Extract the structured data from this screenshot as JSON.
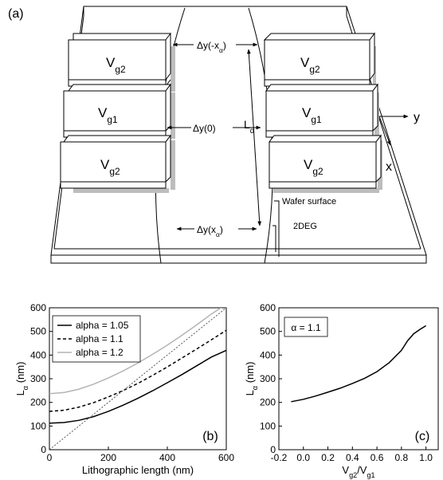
{
  "panel_a": {
    "label": "(a)",
    "gates": {
      "left": [
        "V_g2",
        "V_g1",
        "V_g2"
      ],
      "right": [
        "V_g2",
        "V_g1",
        "V_g2"
      ]
    },
    "annotations": {
      "dy_neg": "Δy(-x_α)",
      "dy_zero": "Δy(0)",
      "dy_pos": "Δy(x_α)",
      "l_alpha": "L_α",
      "wafer": "Wafer surface",
      "twodeg": "2DEG"
    },
    "axes": {
      "y": "y",
      "x": "x"
    }
  },
  "chart_data": [
    {
      "panel_label": "(b)",
      "type": "line",
      "xlabel": "Lithographic length (nm)",
      "ylabel": "L_α (nm)",
      "xlim": [
        0,
        600
      ],
      "ylim": [
        0,
        600
      ],
      "xticks": [
        0,
        200,
        400,
        600
      ],
      "yticks": [
        0,
        100,
        200,
        300,
        400,
        500,
        600
      ],
      "grid": false,
      "legend": "top-left",
      "series": [
        {
          "name": "alpha = 1.05",
          "color": "#000000",
          "dash": "solid",
          "x": [
            0,
            50,
            100,
            150,
            200,
            250,
            300,
            350,
            400,
            450,
            500,
            550,
            600
          ],
          "y": [
            112,
            115,
            124,
            140,
            162,
            188,
            217,
            249,
            283,
            318,
            355,
            392,
            420
          ]
        },
        {
          "name": "alpha = 1.1",
          "color": "#000000",
          "dash": "dashed",
          "x": [
            0,
            50,
            100,
            150,
            200,
            250,
            300,
            350,
            400,
            450,
            500,
            550,
            600
          ],
          "y": [
            162,
            167,
            180,
            199,
            223,
            250,
            280,
            314,
            350,
            388,
            426,
            465,
            505
          ]
        },
        {
          "name": "alpha = 1.2",
          "color": "#b4b4b4",
          "dash": "solid",
          "x": [
            0,
            50,
            100,
            150,
            200,
            250,
            300,
            350,
            400,
            450,
            500,
            550,
            600
          ],
          "y": [
            237,
            242,
            256,
            277,
            303,
            333,
            366,
            403,
            442,
            484,
            528,
            574,
            615
          ]
        },
        {
          "name": "",
          "color": "#555555",
          "dash": "dotted",
          "x": [
            0,
            600
          ],
          "y": [
            0,
            600
          ]
        }
      ]
    },
    {
      "panel_label": "(c)",
      "type": "line",
      "xlabel": "V_g2/V_g1",
      "ylabel": "L_α (nm)",
      "xlim": [
        -0.2,
        1.1
      ],
      "ylim": [
        0,
        600
      ],
      "xticks": [
        -0.2,
        0.0,
        0.2,
        0.4,
        0.6,
        0.8,
        1.0
      ],
      "yticks": [
        0,
        100,
        200,
        300,
        400,
        500,
        600
      ],
      "grid": false,
      "annotation": "α = 1.1",
      "series": [
        {
          "name": "",
          "color": "#000000",
          "dash": "solid",
          "x": [
            -0.1,
            0.0,
            0.1,
            0.2,
            0.3,
            0.4,
            0.5,
            0.6,
            0.7,
            0.8,
            0.85,
            0.9,
            0.95,
            1.0
          ],
          "y": [
            203,
            213,
            227,
            243,
            260,
            280,
            302,
            330,
            368,
            420,
            460,
            490,
            508,
            524
          ]
        }
      ]
    }
  ]
}
